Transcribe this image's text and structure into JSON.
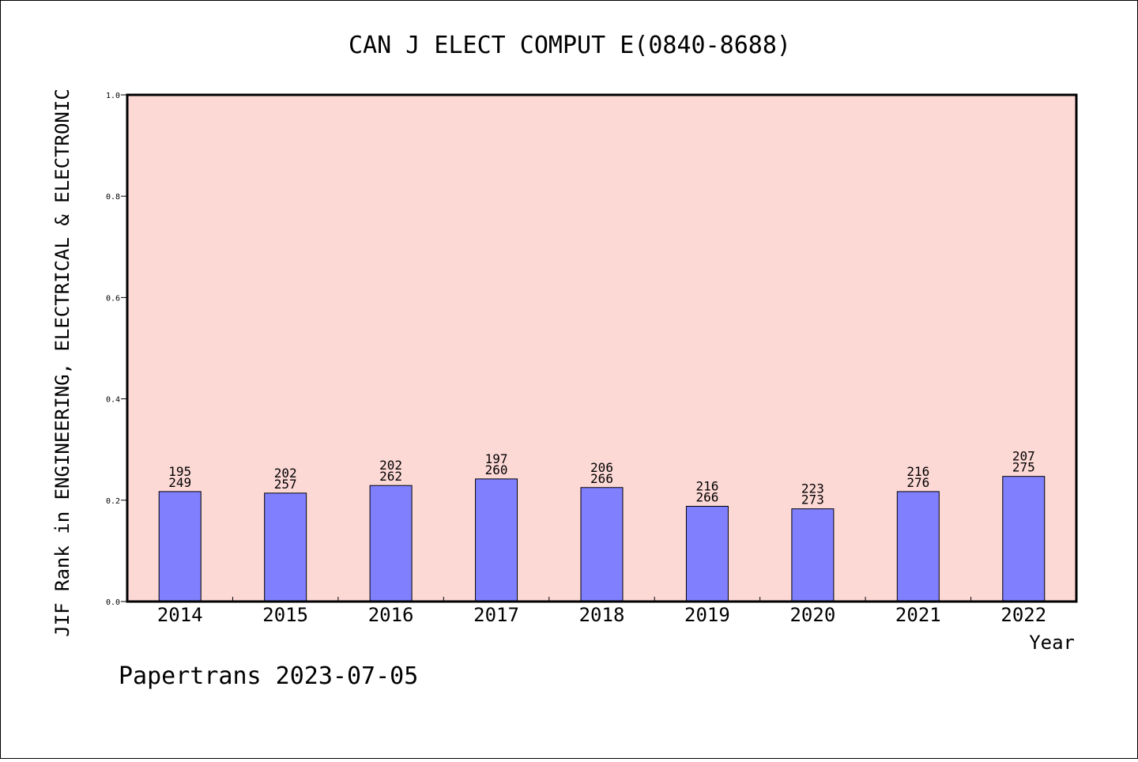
{
  "chart_data": {
    "type": "bar",
    "title": "CAN J ELECT COMPUT E(0840-8688)",
    "ylabel": "JIF Rank in ENGINEERING, ELECTRICAL & ELECTRONIC",
    "xlabel": "Year",
    "ylim": [
      0,
      1.0
    ],
    "yticks": [
      "0.0",
      "0.2",
      "0.4",
      "0.6",
      "0.8",
      "1.0"
    ],
    "categories": [
      "2014",
      "2015",
      "2016",
      "2017",
      "2018",
      "2019",
      "2020",
      "2021",
      "2022"
    ],
    "values": [
      0.217,
      0.214,
      0.229,
      0.242,
      0.225,
      0.188,
      0.183,
      0.217,
      0.247
    ],
    "ranks": [
      "195",
      "202",
      "202",
      "197",
      "206",
      "216",
      "223",
      "216",
      "207"
    ],
    "totals": [
      "249",
      "257",
      "262",
      "260",
      "266",
      "266",
      "273",
      "276",
      "275"
    ],
    "grid": false,
    "colors": {
      "plot_bg": "#fdd9d6",
      "bar": "#8080ff",
      "bar_stroke": "#000000"
    }
  },
  "footer": {
    "text": "Papertrans 2023-07-05"
  }
}
